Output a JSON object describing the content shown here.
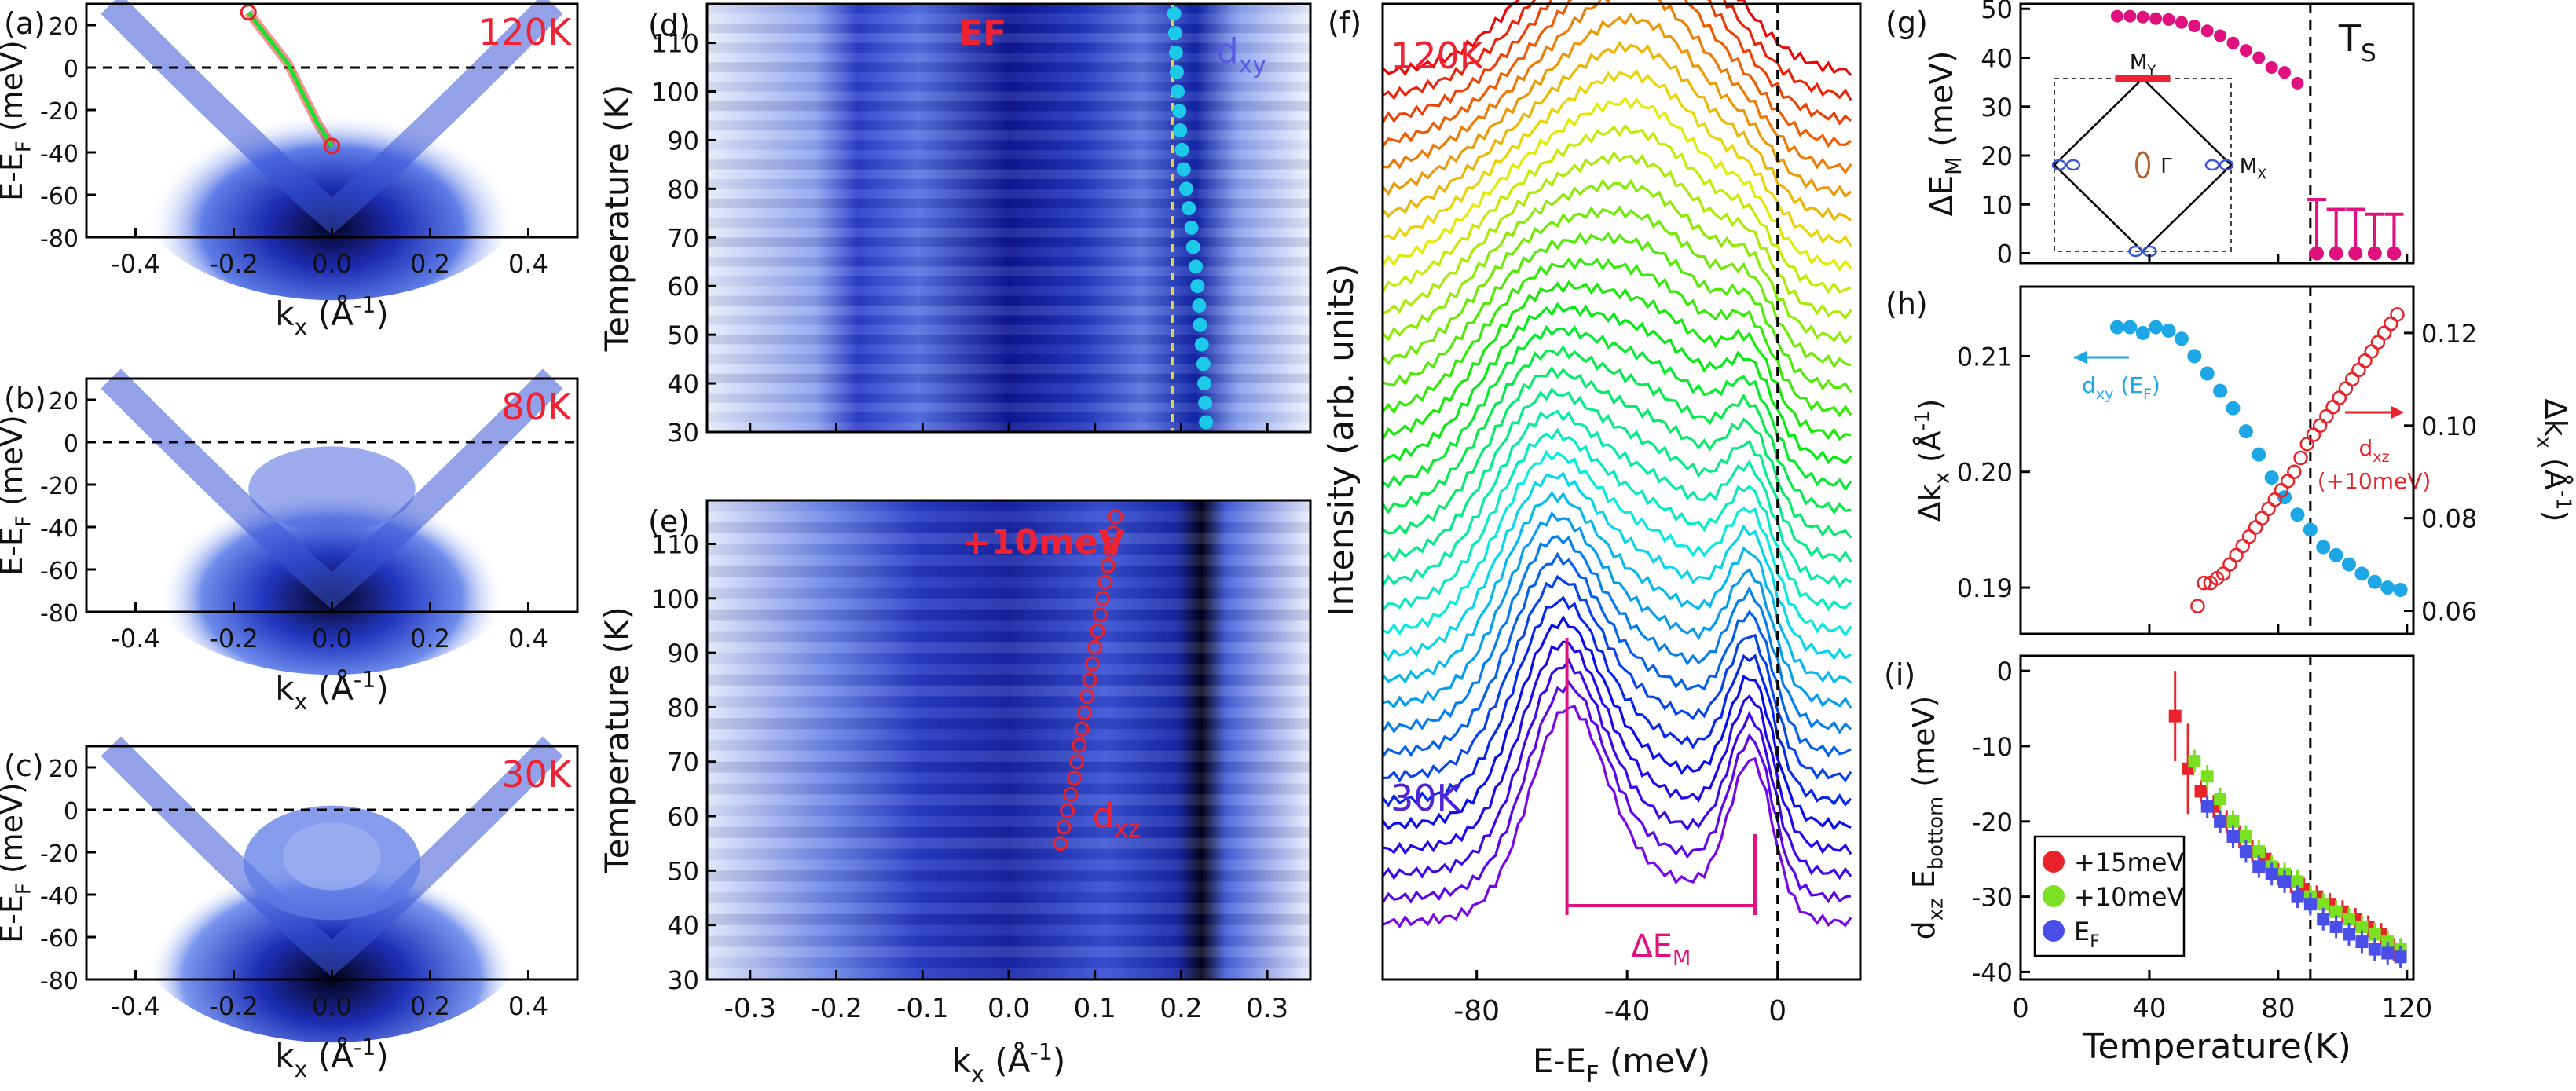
{
  "chart_data": [
    {
      "id": "a",
      "type": "heatmap",
      "panel_label": "(a)",
      "temperature_label": "120K",
      "xlabel": "k",
      "xlabel_sub": "x",
      "xlabel_unit": " (Å",
      "xlabel_sup": "-1",
      "xlabel_tail": ")",
      "ylabel": "E-E",
      "ylabel_sub": "F",
      "ylabel_unit": " (meV)",
      "xlim": [
        -0.5,
        0.5
      ],
      "ylim": [
        -80,
        30
      ],
      "xticks": [
        "-0.4",
        "-0.2",
        "0.0",
        "0.2",
        "0.4"
      ],
      "yticks": [
        "-80",
        "-60",
        "-40",
        "-20",
        "0",
        "20"
      ],
      "fermi_level": 0,
      "band_fit": {
        "x": [
          -0.17,
          -0.13,
          -0.09,
          -0.06,
          -0.03,
          0.0
        ],
        "y": [
          26,
          14,
          2,
          -12,
          -26,
          -37
        ]
      }
    },
    {
      "id": "b",
      "type": "heatmap",
      "panel_label": "(b)",
      "temperature_label": "80K",
      "xlabel": "k",
      "xlabel_sub": "x",
      "xlabel_unit": " (Å",
      "xlabel_sup": "-1",
      "xlabel_tail": ")",
      "ylabel": "E-E",
      "ylabel_sub": "F",
      "ylabel_unit": " (meV)",
      "xlim": [
        -0.5,
        0.5
      ],
      "ylim": [
        -80,
        30
      ],
      "xticks": [
        "-0.4",
        "-0.2",
        "0.0",
        "0.2",
        "0.4"
      ],
      "yticks": [
        "-80",
        "-60",
        "-40",
        "-20",
        "0",
        "20"
      ],
      "fermi_level": 0
    },
    {
      "id": "c",
      "type": "heatmap",
      "panel_label": "(c)",
      "temperature_label": "30K",
      "xlabel": "k",
      "xlabel_sub": "x",
      "xlabel_unit": " (Å",
      "xlabel_sup": "-1",
      "xlabel_tail": ")",
      "ylabel": "E-E",
      "ylabel_sub": "F",
      "ylabel_unit": " (meV)",
      "xlim": [
        -0.5,
        0.5
      ],
      "ylim": [
        -80,
        30
      ],
      "xticks": [
        "-0.4",
        "-0.2",
        "0.0",
        "0.2",
        "0.4"
      ],
      "yticks": [
        "-80",
        "-60",
        "-40",
        "-20",
        "0",
        "20"
      ],
      "fermi_level": 0
    },
    {
      "id": "d",
      "type": "heatmap",
      "panel_label": "(d)",
      "annotation": "EF",
      "band_label": "d",
      "band_label_sub": "xy",
      "ylabel": "Temperature (K)",
      "xlim": [
        -0.35,
        0.35
      ],
      "ylim": [
        30,
        118
      ],
      "yticks": [
        "30",
        "40",
        "50",
        "60",
        "70",
        "80",
        "90",
        "100",
        "110"
      ],
      "dxy_position": {
        "T": [
          32,
          36,
          40,
          44,
          48,
          52,
          56,
          60,
          64,
          68,
          72,
          76,
          80,
          84,
          88,
          92,
          96,
          100,
          104,
          108,
          112,
          116
        ],
        "k": [
          0.229,
          0.228,
          0.227,
          0.226,
          0.224,
          0.222,
          0.221,
          0.219,
          0.217,
          0.214,
          0.212,
          0.209,
          0.206,
          0.203,
          0.201,
          0.199,
          0.198,
          0.196,
          0.195,
          0.194,
          0.193,
          0.192
        ]
      }
    },
    {
      "id": "e",
      "type": "heatmap",
      "panel_label": "(e)",
      "annotation": "+10meV",
      "band_label": "d",
      "band_label_sub": "xz",
      "ylabel": "Temperature (K)",
      "xlabel": "k",
      "xlabel_sub": "x",
      "xlabel_unit": " (Å",
      "xlabel_sup": "-1",
      "xlabel_tail": ")",
      "xlim": [
        -0.35,
        0.35
      ],
      "ylim": [
        30,
        118
      ],
      "xticks": [
        "-0.3",
        "-0.2",
        "-0.1",
        "0.0",
        "0.1",
        "0.2",
        "0.3"
      ],
      "yticks": [
        "30",
        "40",
        "50",
        "60",
        "70",
        "80",
        "90",
        "100",
        "110"
      ],
      "dxz_position": {
        "T": [
          55,
          58,
          61,
          64,
          67,
          70,
          73,
          76,
          79,
          82,
          85,
          88,
          91,
          94,
          97,
          100,
          103,
          106,
          109,
          112,
          115
        ],
        "k": [
          0.06,
          0.064,
          0.068,
          0.072,
          0.076,
          0.079,
          0.082,
          0.085,
          0.088,
          0.091,
          0.094,
          0.097,
          0.1,
          0.103,
          0.106,
          0.109,
          0.112,
          0.115,
          0.118,
          0.121,
          0.124
        ]
      }
    },
    {
      "id": "f",
      "type": "line",
      "panel_label": "(f)",
      "top_label": "120K",
      "bottom_label": "30K",
      "ylabel": "Intensity (arb. units)",
      "xlabel": "E-E",
      "xlabel_sub": "F",
      "xlabel_unit": " (meV)",
      "xlim": [
        -105,
        22
      ],
      "xticks": [
        "-80",
        "-40",
        "0"
      ],
      "n_curves": 36,
      "gap_label": "ΔE",
      "gap_label_sub": "M",
      "gap_markers_meV": [
        -56,
        -6
      ]
    },
    {
      "id": "g",
      "type": "scatter",
      "panel_label": "(g)",
      "ylabel": "ΔE",
      "ylabel_sub": "M",
      "ylabel_unit": " (meV)",
      "ts_label": "T",
      "ts_label_sub": "S",
      "xlim": [
        0,
        122
      ],
      "ylim": [
        -2,
        51
      ],
      "yticks": [
        "0",
        "10",
        "20",
        "30",
        "40",
        "50"
      ],
      "ts": 90,
      "series": [
        {
          "x": [
            30,
            34,
            38,
            42,
            46,
            50,
            54,
            58,
            62,
            66,
            70,
            74,
            78,
            82,
            86
          ],
          "y": [
            48.5,
            48.5,
            48.3,
            48.0,
            47.8,
            47.2,
            46.5,
            45.5,
            44.5,
            43.0,
            41.5,
            40.0,
            38.0,
            37.0,
            34.8
          ]
        },
        {
          "x": [
            92,
            98,
            104,
            110,
            116
          ],
          "y": [
            0,
            0,
            0,
            0,
            0
          ],
          "err": [
            11,
            9,
            9,
            8,
            8
          ]
        }
      ],
      "inset": {
        "top": "M",
        "top_sub": "Y",
        "right": "M",
        "right_sub": "X",
        "center": "Γ"
      }
    },
    {
      "id": "h",
      "type": "scatter",
      "panel_label": "(h)",
      "ylabel": "Δk",
      "ylabel_sub": "x",
      "ylabel_unit": " (Å",
      "ylabel_sup": "-1",
      "ylabel_tail": ")",
      "y2label": "Δk",
      "y2label_sub": "x",
      "y2label_unit": " (Å",
      "y2label_sup": "-1",
      "y2label_tail": ")",
      "xlim": [
        0,
        122
      ],
      "ylim": [
        0.186,
        0.216
      ],
      "y2lim": [
        0.055,
        0.13
      ],
      "yticks": [
        "0.19",
        "0.20",
        "0.21"
      ],
      "y2ticks": [
        "0.06",
        "0.08",
        "0.10",
        "0.12"
      ],
      "ts": 90,
      "dxy_legend": "d",
      "dxy_legend_sub": "xy",
      "dxy_legend_tail": " (E",
      "dxy_legend_sub2": "F",
      "dxy_legend_close": ")",
      "dxz_legend": "d",
      "dxz_legend_sub": "xz",
      "dxz_legend_line2": "(+10meV)",
      "series": [
        {
          "name": "dxy (EF)",
          "axis": "left",
          "x": [
            30,
            34,
            38,
            42,
            46,
            50,
            54,
            58,
            62,
            66,
            70,
            74,
            78,
            82,
            86,
            90,
            94,
            98,
            102,
            106,
            110,
            114,
            118
          ],
          "y": [
            0.2125,
            0.2125,
            0.212,
            0.2125,
            0.2122,
            0.2115,
            0.21,
            0.2085,
            0.207,
            0.2055,
            0.2035,
            0.2015,
            0.1995,
            0.1978,
            0.1963,
            0.195,
            0.1935,
            0.1928,
            0.192,
            0.1912,
            0.1905,
            0.19,
            0.1898
          ]
        },
        {
          "name": "dxz (+10meV)",
          "axis": "right",
          "x": [
            55,
            57,
            59,
            61,
            63,
            65,
            67,
            69,
            71,
            73,
            75,
            77,
            79,
            81,
            83,
            85,
            87,
            89,
            91,
            93,
            95,
            97,
            99,
            101,
            103,
            105,
            107,
            109,
            111,
            113,
            115,
            117
          ],
          "y": [
            0.061,
            0.066,
            0.066,
            0.067,
            0.068,
            0.07,
            0.072,
            0.074,
            0.076,
            0.078,
            0.08,
            0.082,
            0.084,
            0.086,
            0.088,
            0.09,
            0.093,
            0.096,
            0.098,
            0.1,
            0.102,
            0.104,
            0.106,
            0.108,
            0.11,
            0.112,
            0.114,
            0.116,
            0.118,
            0.12,
            0.122,
            0.124
          ]
        }
      ]
    },
    {
      "id": "i",
      "type": "scatter",
      "panel_label": "(i)",
      "ylabel": "d",
      "ylabel_sub": "xz",
      "ylabel_mid": " E",
      "ylabel_sub2": "bottom",
      "ylabel_unit": " (meV)",
      "xlabel": "Temperature(K)",
      "xlim": [
        0,
        122
      ],
      "ylim": [
        -41,
        2
      ],
      "xticks": [
        "0",
        "40",
        "80",
        "120"
      ],
      "yticks": [
        "-40",
        "-30",
        "-20",
        "-10",
        "0"
      ],
      "ts": 90,
      "series": [
        {
          "name": "+15meV",
          "color": "#e8232a",
          "x": [
            48,
            52,
            56,
            60,
            64,
            68,
            72,
            76,
            80,
            84,
            88,
            92,
            96,
            100,
            104,
            108,
            112,
            116
          ],
          "y": [
            -6,
            -13,
            -16,
            -18,
            -20,
            -22,
            -24,
            -25,
            -27,
            -28,
            -29,
            -30,
            -31,
            -32,
            -33,
            -34,
            -35,
            -37
          ]
        },
        {
          "name": "+10meV",
          "color": "#7be021",
          "x": [
            54,
            58,
            62,
            66,
            70,
            74,
            78,
            82,
            86,
            90,
            94,
            98,
            102,
            106,
            110,
            114,
            118
          ],
          "y": [
            -12,
            -14,
            -17,
            -20,
            -22,
            -24,
            -26,
            -27,
            -28,
            -30,
            -31,
            -32,
            -33,
            -34,
            -35,
            -36,
            -37
          ]
        },
        {
          "name": "E",
          "name_sub": "F",
          "color": "#4a4ee8",
          "x": [
            58,
            62,
            66,
            70,
            74,
            78,
            82,
            86,
            90,
            94,
            98,
            102,
            106,
            110,
            114,
            118
          ],
          "y": [
            -18,
            -20,
            -22,
            -24,
            -26,
            -27,
            -28,
            -30,
            -31,
            -33,
            -34,
            -35,
            -36,
            -37,
            -37.5,
            -38
          ]
        }
      ]
    }
  ]
}
